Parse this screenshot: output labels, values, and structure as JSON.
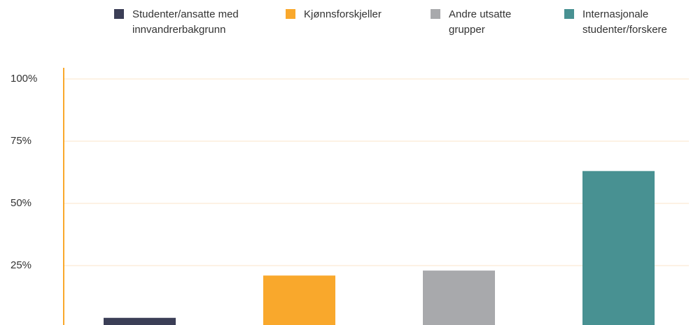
{
  "chart_data": {
    "type": "bar",
    "categories": [
      "Studenter/ansatte med innvandrerbakgrunn",
      "Kjønnsforskjeller",
      "Andre utsatte grupper",
      "Internasjonale studenter/forskere"
    ],
    "values": [
      4,
      21,
      23,
      63
    ],
    "colors": [
      "#3b3e56",
      "#f9a82c",
      "#a8a9ac",
      "#489192"
    ],
    "ylim": [
      0,
      100
    ],
    "yticks": [
      {
        "value": 25,
        "label": "25%"
      },
      {
        "value": 50,
        "label": "50%"
      },
      {
        "value": 75,
        "label": "75%"
      },
      {
        "value": 100,
        "label": "100%"
      }
    ],
    "grid": true
  }
}
